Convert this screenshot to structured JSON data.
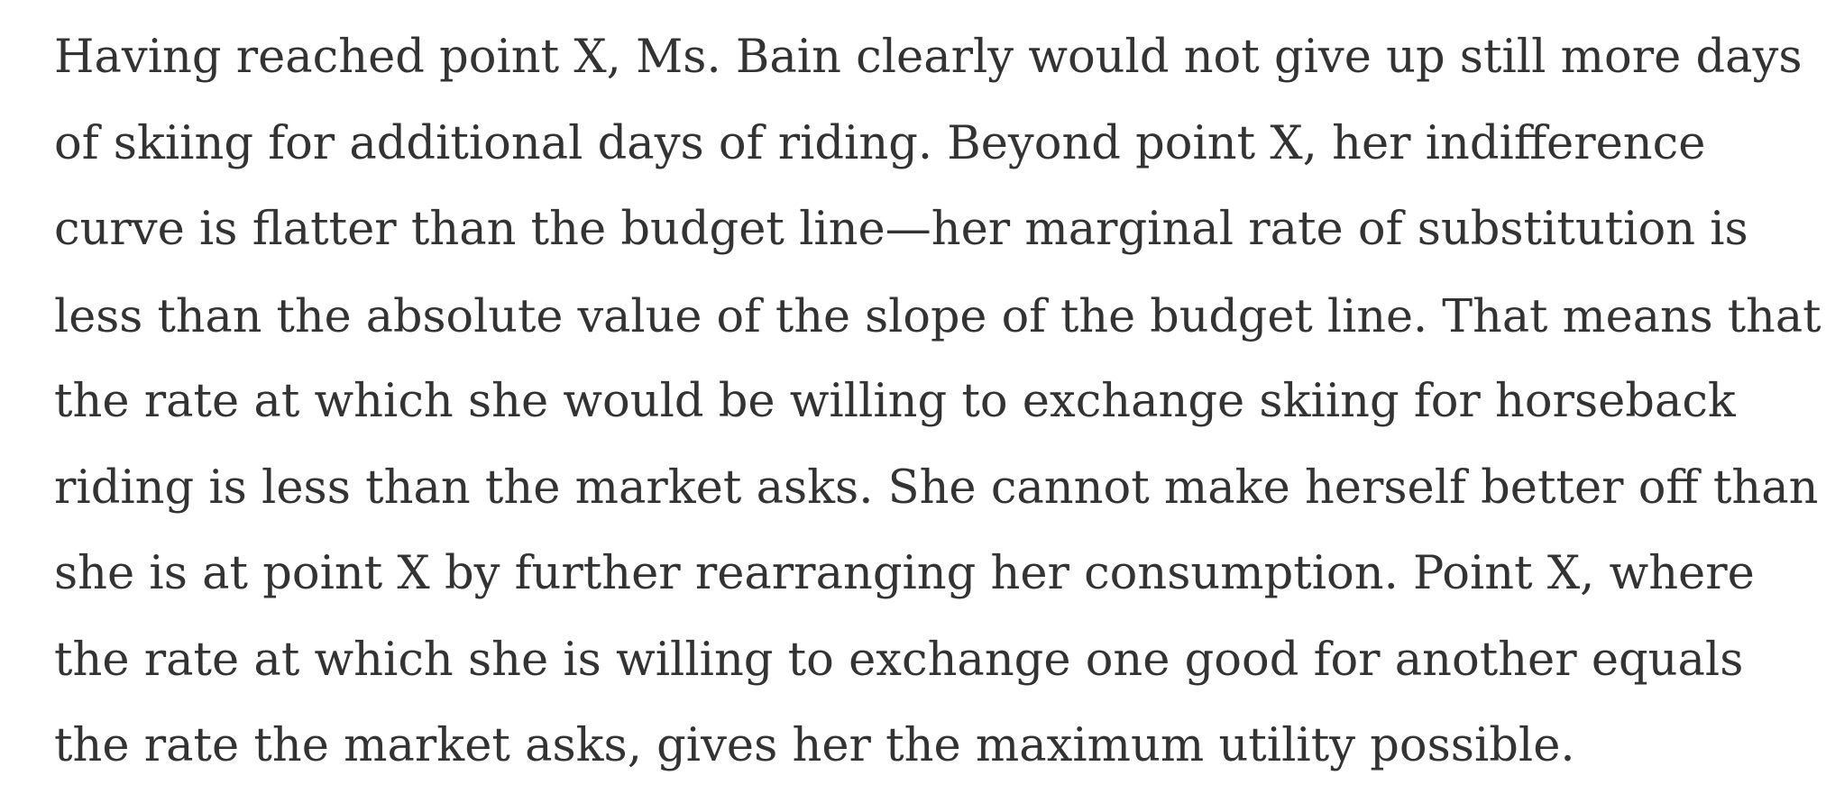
{
  "paragraph": {
    "lines": [
      "Having reached point X, Ms. Bain clearly would not give up still more days",
      "of skiing for additional days of riding. Beyond point X, her indifference",
      "curve is flatter than the budget line—her marginal rate of substitution is",
      "less than the absolute value of the slope of the budget line. That means that",
      "the rate at which she would be willing to exchange skiing for horseback",
      "riding is less than the market asks. She cannot make herself better off than",
      "she is at point X by further rearranging her consumption. Point X, where",
      "the rate at which she is willing to exchange one good for another equals",
      "the rate the market asks, gives her the maximum utility possible."
    ]
  }
}
